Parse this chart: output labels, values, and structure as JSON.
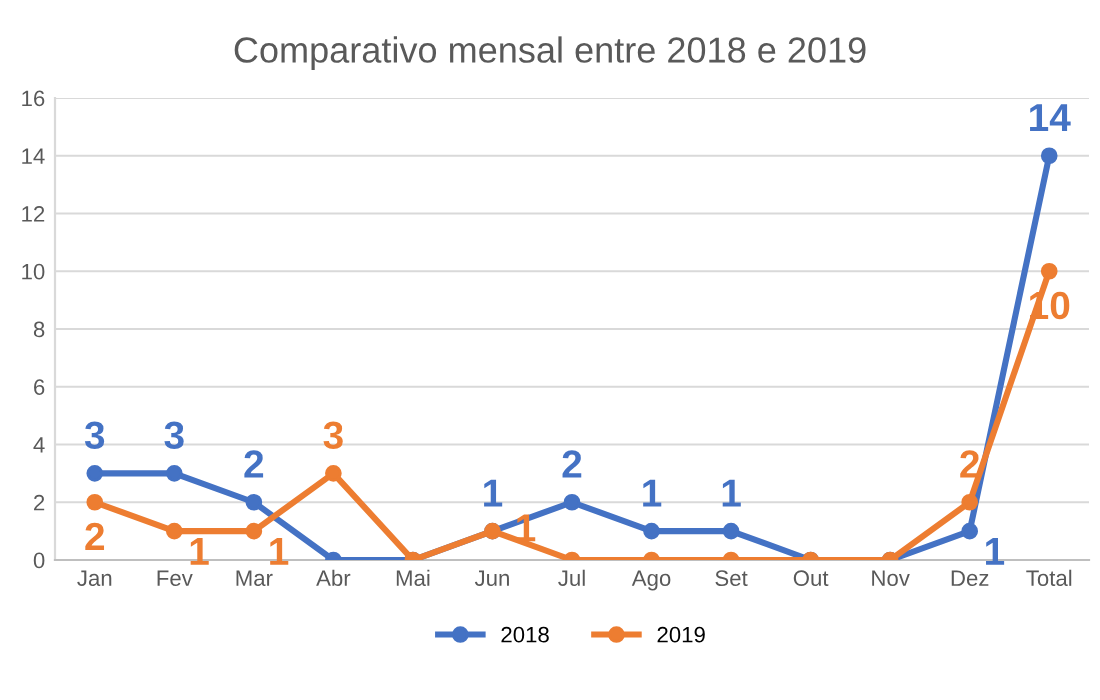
{
  "chart_data": {
    "type": "line",
    "title": "Comparativo mensal entre 2018 e 2019",
    "categories": [
      "Jan",
      "Fev",
      "Mar",
      "Abr",
      "Mai",
      "Jun",
      "Jul",
      "Ago",
      "Set",
      "Out",
      "Nov",
      "Dez",
      "Total"
    ],
    "series": [
      {
        "name": "2018",
        "color": "#4472c4",
        "values": [
          3,
          3,
          2,
          0,
          0,
          1,
          2,
          1,
          1,
          0,
          0,
          1,
          14
        ],
        "value_labels": [
          "3",
          "3",
          "2",
          null,
          null,
          "1",
          "2",
          "1",
          "1",
          null,
          null,
          "1",
          "14"
        ]
      },
      {
        "name": "2019",
        "color": "#ed7d31",
        "values": [
          2,
          1,
          1,
          3,
          0,
          1,
          0,
          0,
          0,
          0,
          0,
          2,
          10
        ],
        "value_labels": [
          "2",
          "1",
          "1",
          "3",
          null,
          "1",
          null,
          null,
          null,
          null,
          null,
          "2",
          "10"
        ]
      }
    ],
    "ylim": [
      0,
      16
    ],
    "yticks": [
      0,
      2,
      4,
      6,
      8,
      10,
      12,
      14,
      16
    ],
    "grid": "y",
    "legend": "bottom",
    "marker": "circle",
    "line_style": "solid"
  }
}
